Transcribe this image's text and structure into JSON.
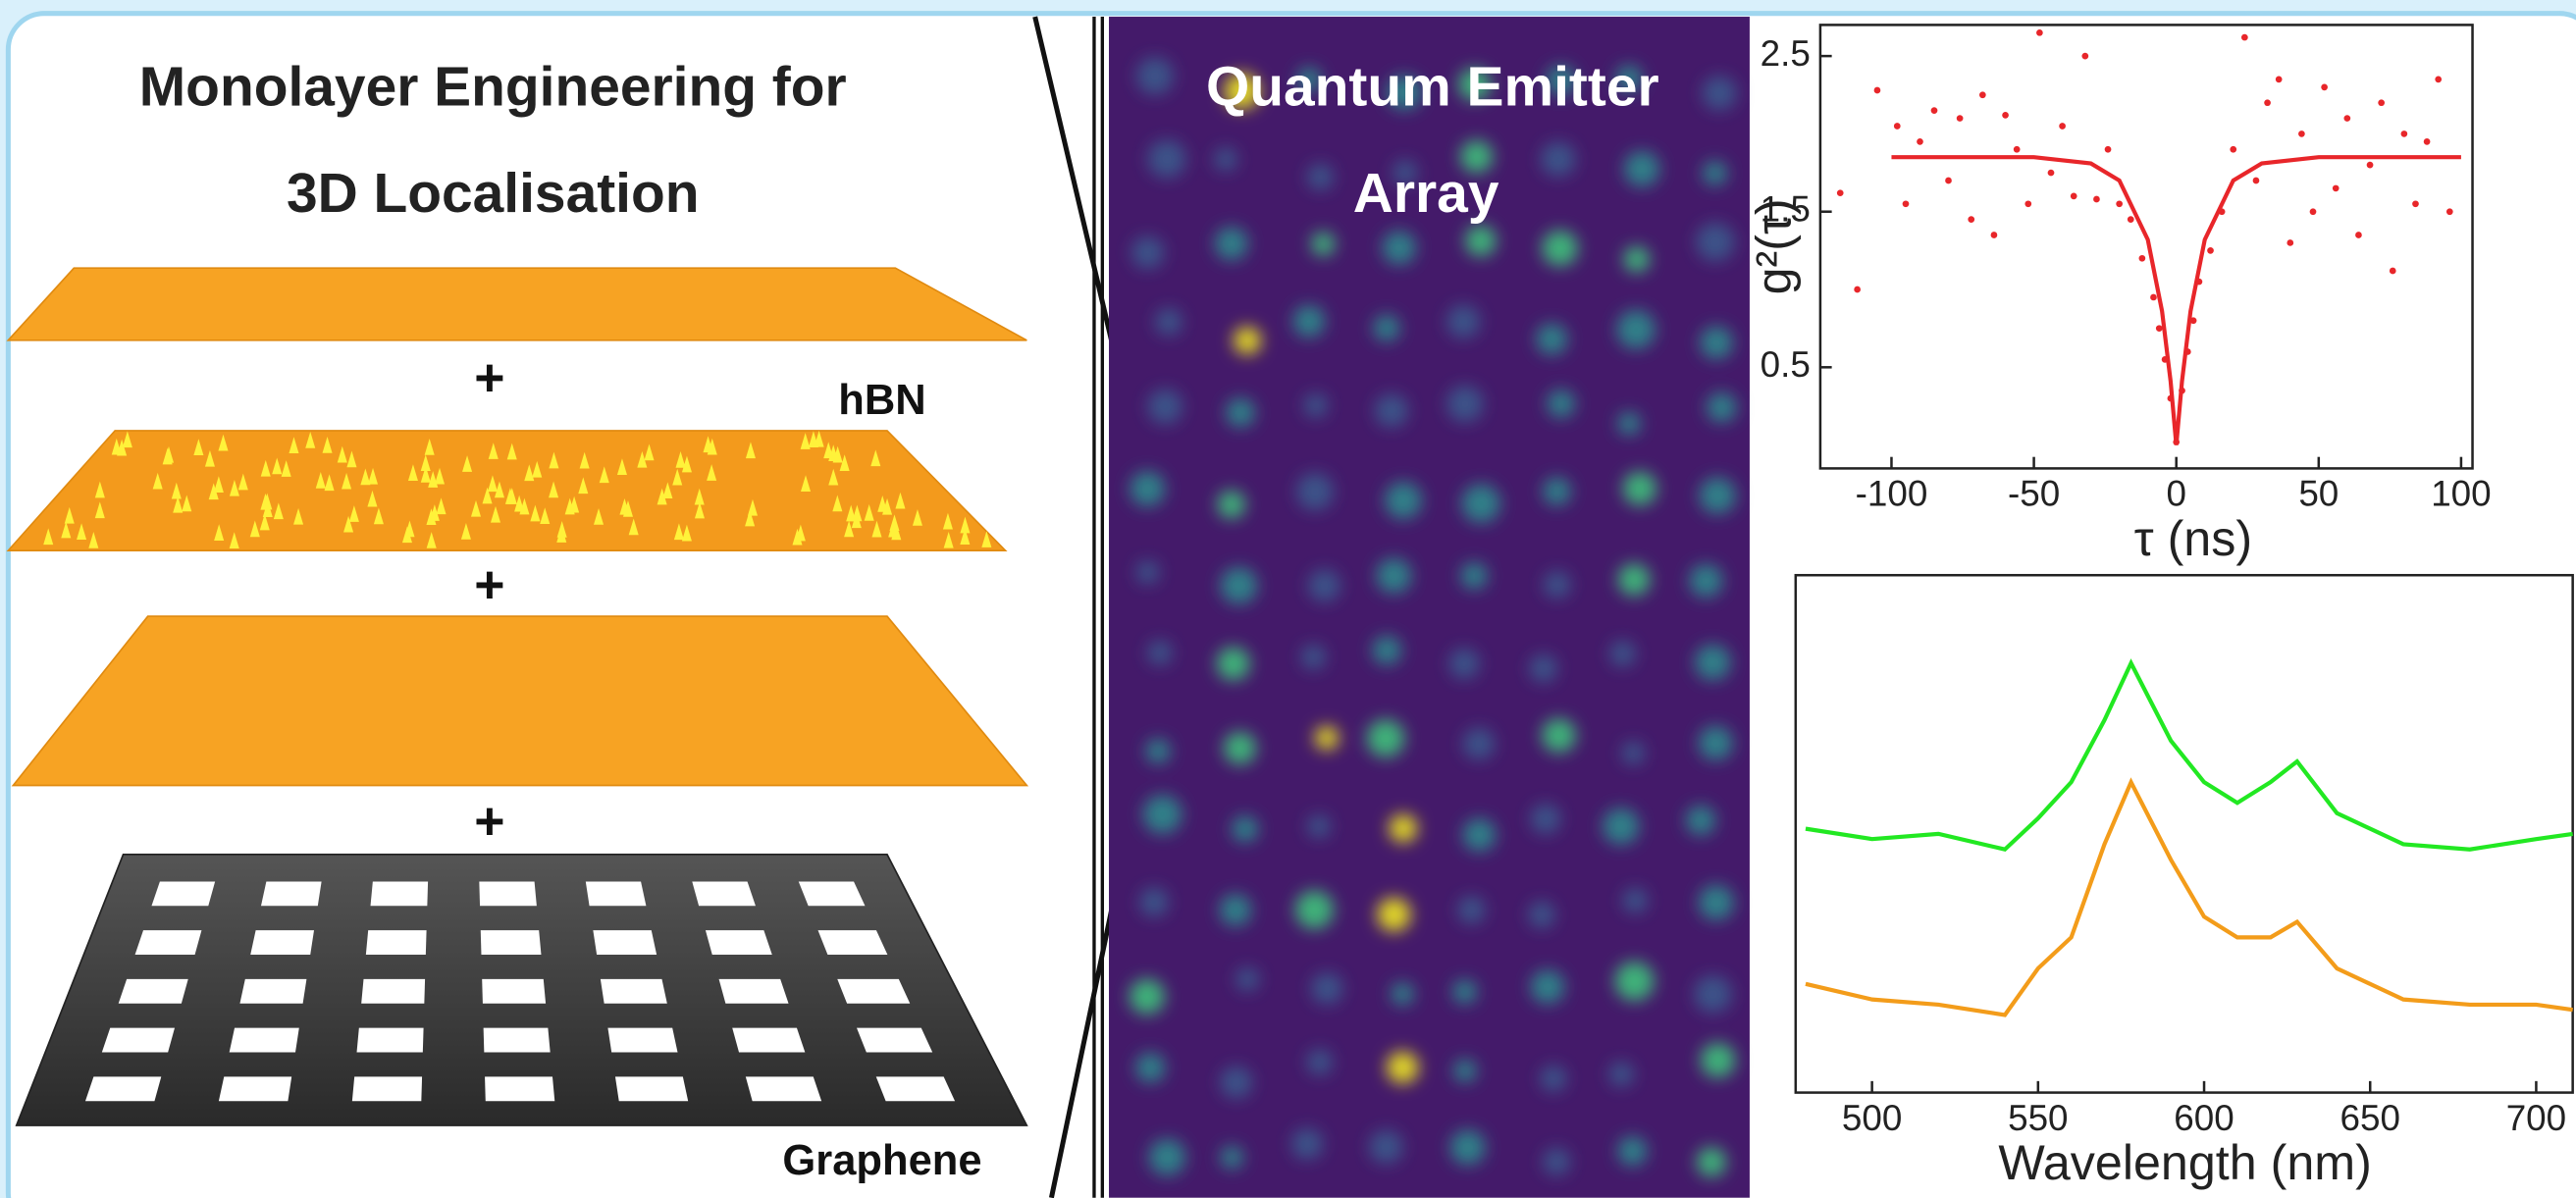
{
  "left_panel": {
    "title_lines": [
      "Monolayer Engineering for",
      "3D Localisation"
    ],
    "plus_signs": [
      "+",
      "+",
      "+"
    ],
    "labels": {
      "hbn": "hBN",
      "graphene": "Graphene"
    }
  },
  "middle_panel": {
    "title_lines": [
      "Quantum Emitter",
      "Array"
    ]
  },
  "chart_data": [
    {
      "type": "line",
      "xlabel": "τ (ns)",
      "ylabel": "g²(τ)",
      "xlim": [
        -125,
        104
      ],
      "ylim": [
        -0.15,
        2.7
      ],
      "xticks": [
        -100,
        -50,
        0,
        50,
        100
      ],
      "yticks": [
        0.5,
        1.5,
        2.5
      ],
      "series": [
        {
          "color": "#e8262a",
          "marker": "dot",
          "x": [
            -118,
            -112,
            -105,
            -98,
            -95,
            -90,
            -85,
            -80,
            -76,
            -72,
            -68,
            -64,
            -60,
            -56,
            -52,
            -48,
            -44,
            -40,
            -36,
            -32,
            -28,
            -24,
            -20,
            -16,
            -12,
            -8,
            -6,
            -4,
            -2,
            0,
            2,
            4,
            6,
            8,
            12,
            16,
            20,
            24,
            28,
            32,
            36,
            40,
            44,
            48,
            52,
            56,
            60,
            64,
            68,
            72,
            76,
            80,
            84,
            88,
            92,
            96
          ],
          "values": [
            1.62,
            1.0,
            2.28,
            2.05,
            1.55,
            1.95,
            2.15,
            1.7,
            2.1,
            1.45,
            2.25,
            1.35,
            2.12,
            1.9,
            1.55,
            2.65,
            1.75,
            2.05,
            1.6,
            2.5,
            1.58,
            1.9,
            1.55,
            1.45,
            1.2,
            0.95,
            0.75,
            0.55,
            0.3,
            0.02,
            0.35,
            0.6,
            0.8,
            1.05,
            1.25,
            1.5,
            1.9,
            2.62,
            1.7,
            2.2,
            2.35,
            1.3,
            2.0,
            1.5,
            2.3,
            1.65,
            2.1,
            1.35,
            1.8,
            2.2,
            1.12,
            2.0,
            1.55,
            1.95,
            2.35,
            1.5
          ]
        },
        {
          "color": "#e8262a",
          "marker": "none",
          "x": [
            -100,
            -50,
            -30,
            -20,
            -10,
            -5,
            -2,
            0,
            2,
            5,
            10,
            20,
            30,
            50,
            100
          ],
          "values": [
            1.85,
            1.85,
            1.81,
            1.7,
            1.32,
            0.86,
            0.41,
            0,
            0.41,
            0.86,
            1.32,
            1.7,
            1.81,
            1.85,
            1.85
          ]
        }
      ]
    },
    {
      "type": "line",
      "xlabel": "Wavelength (nm)",
      "xlim": [
        477,
        711
      ],
      "ylim": [
        0,
        1
      ],
      "xticks": [
        500,
        550,
        600,
        650,
        700
      ],
      "x": [
        480,
        500,
        520,
        540,
        550,
        560,
        570,
        578,
        590,
        600,
        610,
        620,
        628,
        640,
        660,
        680,
        700,
        711
      ],
      "series": [
        {
          "color": "#22e822",
          "values": [
            0.51,
            0.49,
            0.5,
            0.47,
            0.53,
            0.6,
            0.72,
            0.83,
            0.68,
            0.6,
            0.56,
            0.6,
            0.64,
            0.54,
            0.48,
            0.47,
            0.49,
            0.5
          ]
        },
        {
          "color": "#f39c1a",
          "values": [
            0.21,
            0.18,
            0.17,
            0.15,
            0.24,
            0.3,
            0.48,
            0.6,
            0.45,
            0.34,
            0.3,
            0.3,
            0.33,
            0.24,
            0.18,
            0.17,
            0.17,
            0.16
          ]
        }
      ]
    }
  ]
}
